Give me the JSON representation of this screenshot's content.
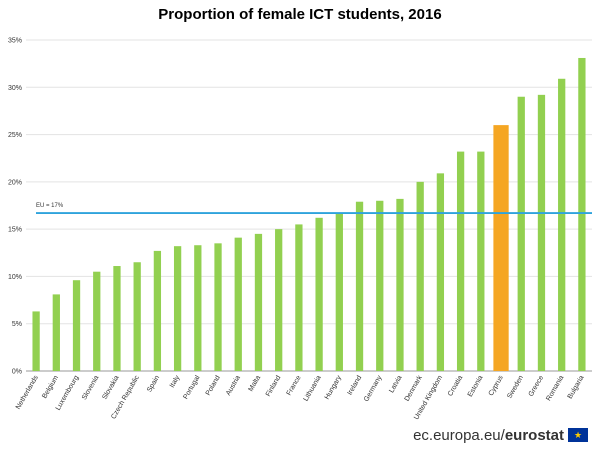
{
  "chart_data": {
    "type": "bar",
    "title": "Proportion of female ICT students, 2016",
    "categories": [
      "Netherlands",
      "Belgium",
      "Luxembourg",
      "Slovenia",
      "Slovakia",
      "Czech Republic",
      "Spain",
      "Italy",
      "Portugal",
      "Poland",
      "Austria",
      "Malta",
      "Finland",
      "France",
      "Lithuania",
      "Hungary",
      "Ireland",
      "Germany",
      "Latvia",
      "Denmark",
      "United Kingdom",
      "Croatia",
      "Estonia",
      "Cyprus",
      "Sweden",
      "Greece",
      "Romania",
      "Bulgaria"
    ],
    "values": [
      6.3,
      8.1,
      9.6,
      10.5,
      11.1,
      11.5,
      12.7,
      13.2,
      13.3,
      13.5,
      14.1,
      14.5,
      15.0,
      15.5,
      16.2,
      16.6,
      17.9,
      18.0,
      18.2,
      20.0,
      20.9,
      23.2,
      23.2,
      26.0,
      29.0,
      29.2,
      30.9,
      33.1
    ],
    "highlight_category": "Cyprus",
    "yticks": [
      "0%",
      "5%",
      "10%",
      "15%",
      "20%",
      "25%",
      "30%",
      "35%"
    ],
    "ylim": [
      0,
      35
    ],
    "grid": true,
    "reference_line": {
      "label": "EU = 17%",
      "value": 16.7
    },
    "colors": {
      "bar": "#92d050",
      "highlight": "#f5a623",
      "reference": "#2ea3dc",
      "grid": "#e3e3e3"
    }
  },
  "footer": {
    "domain": "ec.europa.eu/",
    "brand": "eurostat",
    "flag_icon": "eu-flag-icon",
    "flag_glyph": "★"
  }
}
